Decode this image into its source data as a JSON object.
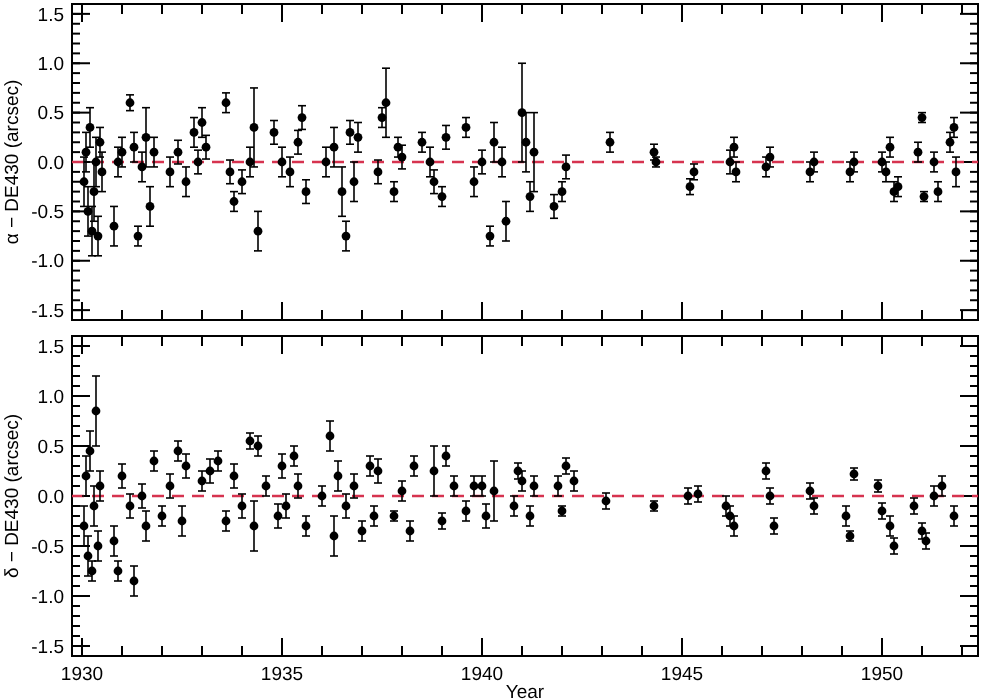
{
  "chart_data": [
    {
      "type": "scatter",
      "ylabel": "α − DE430 (arcsec)",
      "xlim": [
        1929.75,
        1952.4
      ],
      "ylim": [
        -1.6,
        1.6
      ],
      "xticks": [
        1930,
        {
          "value": 1931,
          "label": null
        },
        {
          "value": 1932,
          "label": null
        },
        {
          "value": 1933,
          "label": null
        },
        {
          "value": 1934,
          "label": null
        },
        1935,
        {
          "value": 1936,
          "label": null
        },
        {
          "value": 1937,
          "label": null
        },
        {
          "value": 1938,
          "label": null
        },
        {
          "value": 1939,
          "label": null
        },
        1940,
        {
          "value": 1941,
          "label": null
        },
        {
          "value": 1942,
          "label": null
        },
        {
          "value": 1943,
          "label": null
        },
        {
          "value": 1944,
          "label": null
        },
        1945,
        {
          "value": 1946,
          "label": null
        },
        {
          "value": 1947,
          "label": null
        },
        {
          "value": 1948,
          "label": null
        },
        {
          "value": 1949,
          "label": null
        },
        1950,
        {
          "value": 1951,
          "label": null
        },
        {
          "value": 1952,
          "label": null
        }
      ],
      "yticks": [
        -1.5,
        {
          "value": -1,
          "label": "-1.0"
        },
        -0.5,
        {
          "value": 0,
          "label": "0.0"
        },
        0.5,
        {
          "value": 1,
          "label": "1.0"
        },
        1.5
      ],
      "tick_labels": "y",
      "marker": "circle",
      "ref_lines": [
        {
          "axis": "y",
          "value": 0,
          "label": null,
          "color": "#d6334f",
          "line_style": "dashed"
        }
      ],
      "series": [
        {
          "color": "#000000",
          "x": [
            1930.05,
            1930.1,
            1930.15,
            1930.2,
            1930.25,
            1930.3,
            1930.35,
            1930.4,
            1930.45,
            1930.5,
            1930.8,
            1930.9,
            1931.0,
            1931.2,
            1931.3,
            1931.4,
            1931.5,
            1931.6,
            1931.7,
            1931.8,
            1932.2,
            1932.4,
            1932.6,
            1932.8,
            1932.9,
            1933.0,
            1933.1,
            1933.6,
            1933.7,
            1933.8,
            1934.0,
            1934.2,
            1934.3,
            1934.4,
            1934.8,
            1935.0,
            1935.2,
            1935.4,
            1935.5,
            1935.6,
            1936.1,
            1936.3,
            1936.5,
            1936.6,
            1936.7,
            1936.8,
            1936.9,
            1937.4,
            1937.5,
            1937.6,
            1937.8,
            1937.9,
            1938.0,
            1938.5,
            1938.7,
            1938.8,
            1939.0,
            1939.1,
            1939.6,
            1939.8,
            1940.0,
            1940.2,
            1940.3,
            1940.5,
            1940.6,
            1941.0,
            1941.1,
            1941.2,
            1941.3,
            1941.8,
            1942.0,
            1942.1,
            1943.2,
            1944.3,
            1944.35,
            1945.2,
            1945.3,
            1946.2,
            1946.3,
            1946.35,
            1947.1,
            1947.2,
            1948.2,
            1948.3,
            1949.2,
            1949.3,
            1950.0,
            1950.1,
            1950.2,
            1950.3,
            1950.4,
            1950.9,
            1951.0,
            1951.05,
            1951.3,
            1951.4,
            1951.7,
            1951.8,
            1951.85
          ],
          "values": [
            -0.2,
            0.1,
            -0.5,
            0.35,
            -0.7,
            -0.3,
            0.0,
            -0.75,
            0.2,
            -0.1,
            -0.65,
            0.0,
            0.1,
            0.6,
            0.15,
            -0.75,
            -0.05,
            0.25,
            -0.45,
            0.1,
            -0.1,
            0.1,
            -0.2,
            0.3,
            0.0,
            0.4,
            0.15,
            0.6,
            -0.1,
            -0.4,
            -0.2,
            0.0,
            0.35,
            -0.7,
            0.3,
            0.0,
            -0.1,
            0.2,
            0.45,
            -0.3,
            0.0,
            0.15,
            -0.3,
            -0.75,
            0.3,
            -0.2,
            0.25,
            -0.1,
            0.45,
            0.6,
            -0.3,
            0.15,
            0.05,
            0.2,
            0.0,
            -0.2,
            -0.35,
            0.25,
            0.35,
            -0.2,
            0.0,
            -0.75,
            0.2,
            0.0,
            -0.6,
            0.5,
            0.2,
            -0.35,
            0.1,
            -0.45,
            -0.3,
            -0.05,
            0.2,
            0.1,
            0.0,
            -0.25,
            -0.1,
            0.0,
            0.15,
            -0.1,
            -0.05,
            0.05,
            -0.1,
            0.0,
            -0.1,
            0.0,
            0.0,
            -0.1,
            0.15,
            -0.3,
            -0.25,
            0.1,
            0.45,
            -0.35,
            0.0,
            -0.3,
            0.2,
            0.35,
            -0.1
          ],
          "errors": [
            0.25,
            0.2,
            0.25,
            0.2,
            0.25,
            0.3,
            0.25,
            0.2,
            0.15,
            0.2,
            0.2,
            0.15,
            0.15,
            0.08,
            0.15,
            0.1,
            0.15,
            0.3,
            0.2,
            0.15,
            0.15,
            0.12,
            0.15,
            0.15,
            0.12,
            0.15,
            0.12,
            0.1,
            0.12,
            0.1,
            0.12,
            0.15,
            0.4,
            0.2,
            0.12,
            0.15,
            0.15,
            0.12,
            0.12,
            0.12,
            0.15,
            0.2,
            0.25,
            0.15,
            0.12,
            0.2,
            0.15,
            0.12,
            0.1,
            0.35,
            0.1,
            0.1,
            0.12,
            0.1,
            0.15,
            0.12,
            0.1,
            0.12,
            0.1,
            0.15,
            0.12,
            0.1,
            0.2,
            0.15,
            0.2,
            0.5,
            0.3,
            0.15,
            0.4,
            0.12,
            0.1,
            0.12,
            0.1,
            0.08,
            0.05,
            0.08,
            0.08,
            0.12,
            0.1,
            0.1,
            0.1,
            0.1,
            0.1,
            0.1,
            0.1,
            0.1,
            0.1,
            0.1,
            0.1,
            0.1,
            0.1,
            0.1,
            0.05,
            0.05,
            0.1,
            0.1,
            0.1,
            0.1,
            0.15
          ]
        }
      ]
    },
    {
      "type": "scatter",
      "xlabel": "Year",
      "ylabel": "δ − DE430 (arcsec)",
      "xlim": [
        1929.75,
        1952.4
      ],
      "ylim": [
        -1.6,
        1.6
      ],
      "xticks": [
        1930,
        {
          "value": 1931,
          "label": null
        },
        {
          "value": 1932,
          "label": null
        },
        {
          "value": 1933,
          "label": null
        },
        {
          "value": 1934,
          "label": null
        },
        1935,
        {
          "value": 1936,
          "label": null
        },
        {
          "value": 1937,
          "label": null
        },
        {
          "value": 1938,
          "label": null
        },
        {
          "value": 1939,
          "label": null
        },
        1940,
        {
          "value": 1941,
          "label": null
        },
        {
          "value": 1942,
          "label": null
        },
        {
          "value": 1943,
          "label": null
        },
        {
          "value": 1944,
          "label": null
        },
        1945,
        {
          "value": 1946,
          "label": null
        },
        {
          "value": 1947,
          "label": null
        },
        {
          "value": 1948,
          "label": null
        },
        {
          "value": 1949,
          "label": null
        },
        1950,
        {
          "value": 1951,
          "label": null
        },
        {
          "value": 1952,
          "label": null
        }
      ],
      "yticks": [
        -1.5,
        {
          "value": -1,
          "label": "-1.0"
        },
        -0.5,
        {
          "value": 0,
          "label": "0.0"
        },
        0.5,
        {
          "value": 1,
          "label": "1.0"
        },
        1.5
      ],
      "marker": "circle",
      "ref_lines": [
        {
          "axis": "y",
          "value": 0,
          "label": null,
          "color": "#d6334f",
          "line_style": "dashed"
        }
      ],
      "series": [
        {
          "color": "#000000",
          "x": [
            1930.05,
            1930.1,
            1930.15,
            1930.2,
            1930.25,
            1930.3,
            1930.35,
            1930.4,
            1930.45,
            1930.8,
            1930.9,
            1931.0,
            1931.2,
            1931.3,
            1931.5,
            1931.6,
            1931.8,
            1932.0,
            1932.2,
            1932.4,
            1932.5,
            1932.6,
            1933.0,
            1933.2,
            1933.4,
            1933.6,
            1933.8,
            1934.0,
            1934.2,
            1934.3,
            1934.4,
            1934.6,
            1934.9,
            1935.0,
            1935.1,
            1935.3,
            1935.4,
            1935.6,
            1936.0,
            1936.2,
            1936.3,
            1936.4,
            1936.6,
            1936.8,
            1937.0,
            1937.2,
            1937.3,
            1937.4,
            1937.8,
            1938.0,
            1938.2,
            1938.3,
            1938.8,
            1939.0,
            1939.1,
            1939.3,
            1939.6,
            1939.8,
            1940.0,
            1940.1,
            1940.3,
            1940.8,
            1940.9,
            1941.0,
            1941.2,
            1941.3,
            1941.9,
            1942.0,
            1942.1,
            1942.3,
            1943.1,
            1944.3,
            1945.15,
            1945.4,
            1946.1,
            1946.2,
            1946.3,
            1947.1,
            1947.2,
            1947.3,
            1948.2,
            1948.3,
            1949.1,
            1949.2,
            1949.3,
            1949.9,
            1950.0,
            1950.2,
            1950.3,
            1950.8,
            1951.0,
            1951.1,
            1951.3,
            1951.5,
            1951.8
          ],
          "values": [
            -0.3,
            0.2,
            -0.6,
            0.45,
            -0.75,
            -0.1,
            0.85,
            -0.5,
            0.1,
            -0.45,
            -0.75,
            0.2,
            -0.1,
            -0.85,
            0.0,
            -0.3,
            0.35,
            -0.2,
            0.1,
            0.45,
            -0.25,
            0.3,
            0.15,
            0.25,
            0.35,
            -0.25,
            0.2,
            -0.1,
            0.55,
            -0.3,
            0.5,
            0.1,
            -0.2,
            0.3,
            -0.1,
            0.4,
            0.1,
            -0.3,
            0.0,
            0.6,
            -0.4,
            0.2,
            -0.1,
            0.1,
            -0.35,
            0.3,
            -0.2,
            0.25,
            -0.2,
            0.05,
            -0.35,
            0.3,
            0.25,
            -0.25,
            0.4,
            0.1,
            -0.15,
            0.1,
            0.1,
            -0.2,
            0.05,
            -0.1,
            0.25,
            0.15,
            -0.2,
            0.1,
            0.1,
            -0.15,
            0.3,
            0.15,
            -0.05,
            -0.1,
            0.0,
            0.02,
            -0.1,
            -0.2,
            -0.3,
            0.25,
            0.0,
            -0.3,
            0.05,
            -0.1,
            -0.2,
            -0.4,
            0.22,
            0.1,
            -0.15,
            -0.3,
            -0.5,
            -0.1,
            -0.35,
            -0.45,
            0.0,
            0.1,
            -0.2
          ],
          "errors": [
            0.2,
            0.2,
            0.2,
            0.2,
            0.1,
            0.2,
            0.35,
            0.15,
            0.15,
            0.15,
            0.1,
            0.12,
            0.12,
            0.15,
            0.12,
            0.15,
            0.1,
            0.1,
            0.12,
            0.1,
            0.15,
            0.12,
            0.1,
            0.12,
            0.1,
            0.1,
            0.12,
            0.12,
            0.08,
            0.25,
            0.1,
            0.1,
            0.12,
            0.12,
            0.12,
            0.1,
            0.12,
            0.1,
            0.1,
            0.15,
            0.2,
            0.15,
            0.12,
            0.12,
            0.1,
            0.1,
            0.1,
            0.12,
            0.05,
            0.1,
            0.1,
            0.1,
            0.25,
            0.08,
            0.1,
            0.1,
            0.1,
            0.1,
            0.1,
            0.12,
            0.3,
            0.1,
            0.08,
            0.1,
            0.1,
            0.1,
            0.1,
            0.05,
            0.08,
            0.1,
            0.08,
            0.05,
            0.08,
            0.08,
            0.1,
            0.1,
            0.1,
            0.08,
            0.08,
            0.08,
            0.08,
            0.08,
            0.1,
            0.05,
            0.06,
            0.06,
            0.08,
            0.1,
            0.08,
            0.08,
            0.08,
            0.08,
            0.1,
            0.1,
            0.1
          ]
        }
      ]
    }
  ]
}
